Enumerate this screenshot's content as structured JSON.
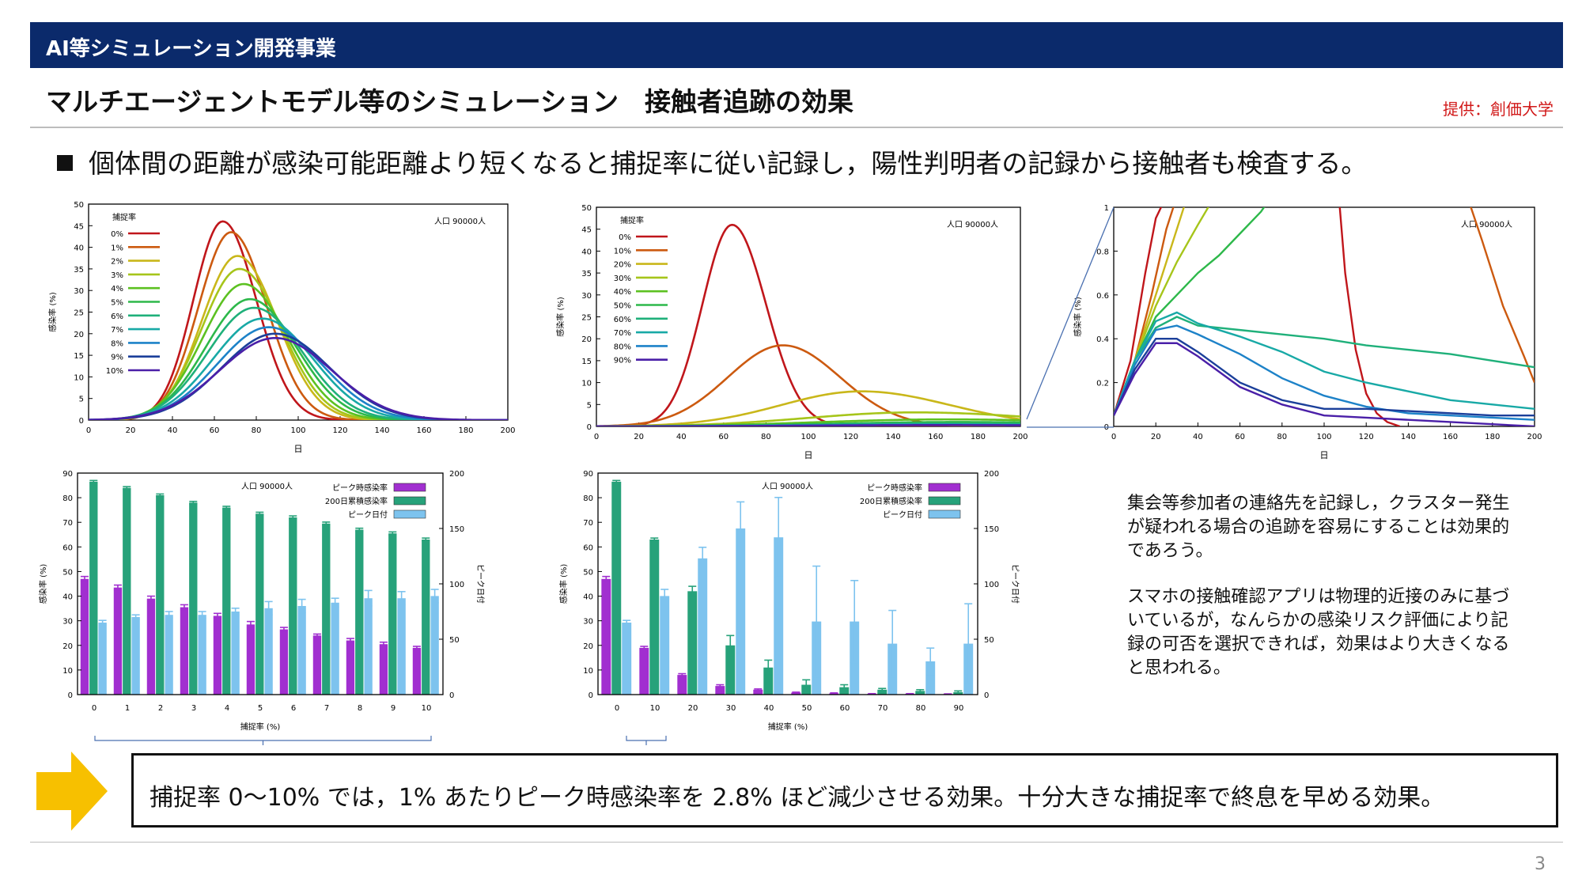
{
  "header": {
    "section": "AI等シミュレーション開発事業"
  },
  "title": "マルチエージェントモデル等のシミュレーション　接触者追跡の効果",
  "credit": "提供：創価大学",
  "bullet": "個体間の距離が感染可能距離より短くなると捕捉率に従い記録し，陽性判明者の記録から接触者も検査する。",
  "side_text": [
    "集会等参加者の連絡先を記録し，クラスター発生が疑われる場合の追跡を容易にすることは効果的であろう。",
    "スマホの接触確認アプリは物理的近接のみに基づいているが，なんらかの感染リスク評価により記録の可否を選択できれば，効果はより大きくなると思われる。"
  ],
  "conclusion": "捕捉率 0～10% では，1% あたりピーク時感染率を 2.8% ほど減少させる効果。十分大きな捕捉率で終息を早める効果。",
  "page_number": "3",
  "chart_data": [
    {
      "type": "line",
      "id": "chart1",
      "xlabel": "日",
      "ylabel": "感染率 (%)",
      "annotation": "人口 90000人",
      "legend_title": "捕捉率",
      "xlim": [
        0,
        200
      ],
      "ylim": [
        0,
        50
      ],
      "xticks": [
        0,
        20,
        40,
        60,
        80,
        100,
        120,
        140,
        160,
        180,
        200
      ],
      "yticks": [
        0,
        5,
        10,
        15,
        20,
        25,
        30,
        35,
        40,
        45,
        50
      ],
      "series": [
        {
          "name": "0%",
          "color": "#c0161b",
          "peak_day": 64,
          "peak": 46,
          "rise": 14,
          "fall": 16
        },
        {
          "name": "1%",
          "color": "#cc5a10",
          "peak_day": 68,
          "peak": 43.5,
          "rise": 15.5,
          "fall": 17
        },
        {
          "name": "2%",
          "color": "#c9b71a",
          "peak_day": 71,
          "peak": 38,
          "rise": 17,
          "fall": 19
        },
        {
          "name": "3%",
          "color": "#a6c51a",
          "peak_day": 72,
          "peak": 35,
          "rise": 18,
          "fall": 20
        },
        {
          "name": "4%",
          "color": "#5cc121",
          "peak_day": 74,
          "peak": 31.5,
          "rise": 19.5,
          "fall": 21
        },
        {
          "name": "5%",
          "color": "#2db84a",
          "peak_day": 77,
          "peak": 28,
          "rise": 21,
          "fall": 22
        },
        {
          "name": "6%",
          "color": "#1fb07a",
          "peak_day": 79,
          "peak": 26,
          "rise": 22,
          "fall": 23
        },
        {
          "name": "7%",
          "color": "#18a9a6",
          "peak_day": 83,
          "peak": 23.5,
          "rise": 23.5,
          "fall": 24
        },
        {
          "name": "8%",
          "color": "#1d82c8",
          "peak_day": 86,
          "peak": 21.5,
          "rise": 24.5,
          "fall": 25
        },
        {
          "name": "9%",
          "color": "#1b3f9a",
          "peak_day": 89,
          "peak": 20,
          "rise": 25.5,
          "fall": 26
        },
        {
          "name": "10%",
          "color": "#4a1fa8",
          "peak_day": 89,
          "peak": 19,
          "rise": 26.5,
          "fall": 27
        }
      ]
    },
    {
      "type": "line",
      "id": "chart2",
      "xlabel": "日",
      "ylabel": "感染率 (%)",
      "annotation": "人口 90000人",
      "legend_title": "捕捉率",
      "xlim": [
        0,
        200
      ],
      "ylim": [
        0,
        50
      ],
      "xticks": [
        0,
        20,
        40,
        60,
        80,
        100,
        120,
        140,
        160,
        180,
        200
      ],
      "yticks": [
        0,
        5,
        10,
        15,
        20,
        25,
        30,
        35,
        40,
        45,
        50
      ],
      "series": [
        {
          "name": "0%",
          "color": "#c0161b",
          "peak_day": 64,
          "peak": 46,
          "rise": 14,
          "fall": 16
        },
        {
          "name": "10%",
          "color": "#cc5a10",
          "peak_day": 88,
          "peak": 18.5,
          "rise": 26,
          "fall": 27
        },
        {
          "name": "20%",
          "color": "#c9b71a",
          "peak_day": 125,
          "peak": 8,
          "rise": 38,
          "fall": 42
        },
        {
          "name": "30%",
          "color": "#a6c51a",
          "peak_day": 150,
          "peak": 3.2,
          "rise": 50,
          "fall": 60
        },
        {
          "name": "40%",
          "color": "#5cc121",
          "peak_day": 165,
          "peak": 1.6,
          "rise": 60,
          "fall": 70
        },
        {
          "name": "50%",
          "color": "#2db84a",
          "peak_day": 170,
          "peak": 1.0,
          "rise": 60,
          "fall": 70
        },
        {
          "name": "60%",
          "color": "#1fb07a",
          "peak_day": 160,
          "peak": 0.6,
          "rise": 60,
          "fall": 70
        },
        {
          "name": "70%",
          "color": "#18a9a6",
          "peak_day": 160,
          "peak": 0.45,
          "rise": 60,
          "fall": 70
        },
        {
          "name": "80%",
          "color": "#1d82c8",
          "peak_day": 160,
          "peak": 0.35,
          "rise": 60,
          "fall": 70
        },
        {
          "name": "90%",
          "color": "#4a1fa8",
          "peak_day": 160,
          "peak": 0.3,
          "rise": 60,
          "fall": 70
        }
      ]
    },
    {
      "type": "line",
      "id": "chart3",
      "xlabel": "日",
      "ylabel": "感染率 (%)",
      "annotation": "人口 90000人",
      "xlim": [
        0,
        200
      ],
      "ylim": [
        0,
        1
      ],
      "xticks": [
        0,
        20,
        40,
        60,
        80,
        100,
        120,
        140,
        160,
        180,
        200
      ],
      "yticks": [
        0,
        0.2,
        0.4,
        0.6,
        0.8,
        1
      ],
      "yticklabels": [
        "0",
        "0.2",
        "0.4",
        "0.6",
        "0.8",
        "1"
      ],
      "series": [
        {
          "color": "#c0161b",
          "x": [
            0,
            8,
            15,
            20,
            25
          ],
          "y": [
            0.05,
            0.3,
            0.7,
            0.95,
            1.05
          ],
          "x2": [
            107,
            110,
            115,
            120,
            125,
            130,
            136
          ],
          "y2": [
            1.05,
            0.7,
            0.35,
            0.15,
            0.06,
            0.02,
            0.0
          ]
        },
        {
          "color": "#cc5a10",
          "x": [
            0,
            10,
            18,
            25,
            30
          ],
          "y": [
            0.05,
            0.3,
            0.6,
            0.9,
            1.05
          ],
          "x2": [
            168,
            175,
            185,
            195,
            200
          ],
          "y2": [
            1.05,
            0.85,
            0.55,
            0.32,
            0.2
          ]
        },
        {
          "color": "#c9b71a",
          "x": [
            0,
            10,
            20,
            30,
            35
          ],
          "y": [
            0.05,
            0.3,
            0.6,
            0.9,
            1.05
          ]
        },
        {
          "color": "#a6c51a",
          "x": [
            0,
            10,
            20,
            30,
            40,
            48
          ],
          "y": [
            0.05,
            0.3,
            0.55,
            0.75,
            0.92,
            1.05
          ]
        },
        {
          "color": "#2db84a",
          "x": [
            0,
            10,
            20,
            30,
            40,
            50,
            60,
            70,
            75
          ],
          "y": [
            0.05,
            0.3,
            0.5,
            0.6,
            0.7,
            0.78,
            0.88,
            0.98,
            1.05
          ]
        },
        {
          "color": "#1fb07a",
          "x": [
            0,
            10,
            20,
            30,
            40,
            60,
            80,
            100,
            120,
            140,
            160,
            180,
            200
          ],
          "y": [
            0.05,
            0.3,
            0.45,
            0.5,
            0.46,
            0.44,
            0.42,
            0.4,
            0.37,
            0.35,
            0.33,
            0.3,
            0.27
          ]
        },
        {
          "color": "#18a9a6",
          "x": [
            0,
            10,
            20,
            30,
            40,
            60,
            80,
            100,
            120,
            140,
            160,
            180,
            200
          ],
          "y": [
            0.05,
            0.3,
            0.48,
            0.52,
            0.47,
            0.41,
            0.34,
            0.25,
            0.2,
            0.16,
            0.12,
            0.1,
            0.08
          ]
        },
        {
          "color": "#1d82c8",
          "x": [
            0,
            10,
            20,
            30,
            40,
            60,
            80,
            100,
            120,
            140,
            160,
            180,
            200
          ],
          "y": [
            0.05,
            0.28,
            0.44,
            0.46,
            0.42,
            0.33,
            0.22,
            0.14,
            0.09,
            0.06,
            0.05,
            0.04,
            0.03
          ]
        },
        {
          "color": "#1b3f9a",
          "x": [
            0,
            10,
            20,
            30,
            40,
            60,
            80,
            100,
            120,
            140,
            160,
            180,
            200
          ],
          "y": [
            0.05,
            0.26,
            0.4,
            0.4,
            0.34,
            0.2,
            0.12,
            0.08,
            0.08,
            0.07,
            0.06,
            0.05,
            0.05
          ]
        },
        {
          "color": "#4a1fa8",
          "x": [
            0,
            10,
            20,
            30,
            40,
            60,
            80,
            100,
            120,
            140,
            160,
            180,
            200
          ],
          "y": [
            0.05,
            0.24,
            0.38,
            0.38,
            0.32,
            0.18,
            0.1,
            0.05,
            0.04,
            0.03,
            0.02,
            0.01,
            0.0
          ]
        }
      ]
    },
    {
      "type": "bar",
      "id": "chart4",
      "xlabel": "捕捉率 (%)",
      "ylabel": "感染率 (%)",
      "y2label": "ピーク日付",
      "annotation": "人口 90000人",
      "categories": [
        "0",
        "1",
        "2",
        "3",
        "4",
        "5",
        "6",
        "7",
        "8",
        "9",
        "10"
      ],
      "ylim": [
        0,
        90
      ],
      "yticks": [
        0,
        10,
        20,
        30,
        40,
        50,
        60,
        70,
        80,
        90
      ],
      "y2lim": [
        0,
        200
      ],
      "y2ticks": [
        0,
        50,
        100,
        150,
        200
      ],
      "series": [
        {
          "name": "ピーク時感染率",
          "color": "#a12fd0",
          "axis": "left",
          "values": [
            47,
            43.5,
            39,
            35.5,
            32,
            28.5,
            26.5,
            24,
            22,
            20.5,
            19
          ],
          "err": [
            1,
            1,
            1,
            1,
            1,
            1.2,
            0.8,
            0.6,
            0.8,
            0.8,
            0.6
          ]
        },
        {
          "name": "200日累積感染率",
          "color": "#27a27a",
          "axis": "left",
          "values": [
            86.5,
            84,
            81,
            78,
            76,
            73.5,
            72,
            69.5,
            67,
            65.5,
            63
          ],
          "err": [
            0.5,
            0.5,
            0.5,
            0.5,
            0.5,
            0.6,
            0.6,
            0.6,
            0.6,
            0.6,
            0.6
          ]
        },
        {
          "name": "ピーク日付",
          "color": "#7dc3ee",
          "axis": "right",
          "values": [
            65,
            70,
            72,
            72,
            75,
            78,
            80,
            83,
            87,
            87,
            89
          ],
          "err": [
            2,
            2,
            3,
            3,
            3,
            6,
            6,
            4,
            7,
            6,
            6
          ]
        }
      ]
    },
    {
      "type": "bar",
      "id": "chart5",
      "xlabel": "捕捉率 (%)",
      "ylabel": "感染率 (%)",
      "y2label": "ピーク日付",
      "annotation": "人口 90000人",
      "categories": [
        "0",
        "10",
        "20",
        "30",
        "40",
        "50",
        "60",
        "70",
        "80",
        "90"
      ],
      "ylim": [
        0,
        90
      ],
      "yticks": [
        0,
        10,
        20,
        30,
        40,
        50,
        60,
        70,
        80,
        90
      ],
      "y2lim": [
        0,
        200
      ],
      "y2ticks": [
        0,
        50,
        100,
        150,
        200
      ],
      "series": [
        {
          "name": "ピーク時感染率",
          "color": "#a12fd0",
          "axis": "left",
          "values": [
            47,
            19,
            8,
            3.5,
            2,
            0.8,
            0.5,
            0.3,
            0.3,
            0.2
          ],
          "err": [
            1,
            0.6,
            0.5,
            0.5,
            0.3,
            0.2,
            0.2,
            0.1,
            0.1,
            0.1
          ]
        },
        {
          "name": "200日累積感染率",
          "color": "#27a27a",
          "axis": "left",
          "values": [
            86.5,
            63,
            42,
            20,
            11,
            4,
            3,
            2,
            1.5,
            1
          ],
          "err": [
            0.5,
            0.6,
            2,
            4,
            3,
            2,
            1,
            0.5,
            0.5,
            0.5
          ]
        },
        {
          "name": "ピーク日付",
          "color": "#7dc3ee",
          "axis": "right",
          "values": [
            65,
            89,
            123,
            150,
            142,
            66,
            66,
            46,
            30,
            46
          ],
          "err": [
            2,
            6,
            10,
            24,
            36,
            50,
            37,
            30,
            12,
            36
          ]
        }
      ]
    }
  ]
}
